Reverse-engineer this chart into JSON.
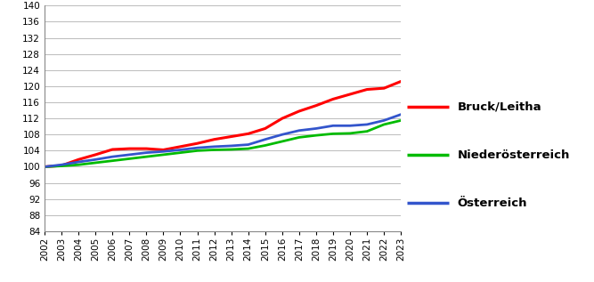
{
  "years": [
    2002,
    2003,
    2004,
    2005,
    2006,
    2007,
    2008,
    2009,
    2010,
    2011,
    2012,
    2013,
    2014,
    2015,
    2016,
    2017,
    2018,
    2019,
    2020,
    2021,
    2022,
    2023
  ],
  "bruck_leitha": [
    100.0,
    100.3,
    101.8,
    103.0,
    104.3,
    104.5,
    104.5,
    104.2,
    105.0,
    105.8,
    106.8,
    107.5,
    108.2,
    109.5,
    112.0,
    113.8,
    115.2,
    116.8,
    118.0,
    119.2,
    119.5,
    121.2
  ],
  "niederoesterreich": [
    100.0,
    100.2,
    100.5,
    101.0,
    101.5,
    102.0,
    102.5,
    103.0,
    103.5,
    104.0,
    104.2,
    104.3,
    104.5,
    105.3,
    106.3,
    107.3,
    107.8,
    108.2,
    108.3,
    108.8,
    110.5,
    111.5
  ],
  "oesterreich": [
    100.0,
    100.5,
    101.2,
    101.8,
    102.5,
    103.0,
    103.5,
    103.8,
    104.2,
    104.7,
    105.0,
    105.2,
    105.5,
    106.8,
    108.0,
    109.0,
    109.5,
    110.2,
    110.2,
    110.5,
    111.5,
    113.0
  ],
  "line_colors": {
    "bruck_leitha": "#FF0000",
    "niederoesterreich": "#00BB00",
    "oesterreich": "#3355CC"
  },
  "line_widths": {
    "bruck_leitha": 2.2,
    "niederoesterreich": 2.0,
    "oesterreich": 2.0
  },
  "legend_labels": {
    "bruck_leitha": "Bruck/Leitha",
    "niederoesterreich": "Niederösterreich",
    "oesterreich": "Österreich"
  },
  "ylim": [
    84,
    140
  ],
  "yticks": [
    84,
    88,
    92,
    96,
    100,
    104,
    108,
    112,
    116,
    120,
    124,
    128,
    132,
    136,
    140
  ],
  "grid_color": "#BBBBBB",
  "background_color": "#FFFFFF",
  "tick_fontsize": 7.5,
  "legend_fontsize": 9.5
}
